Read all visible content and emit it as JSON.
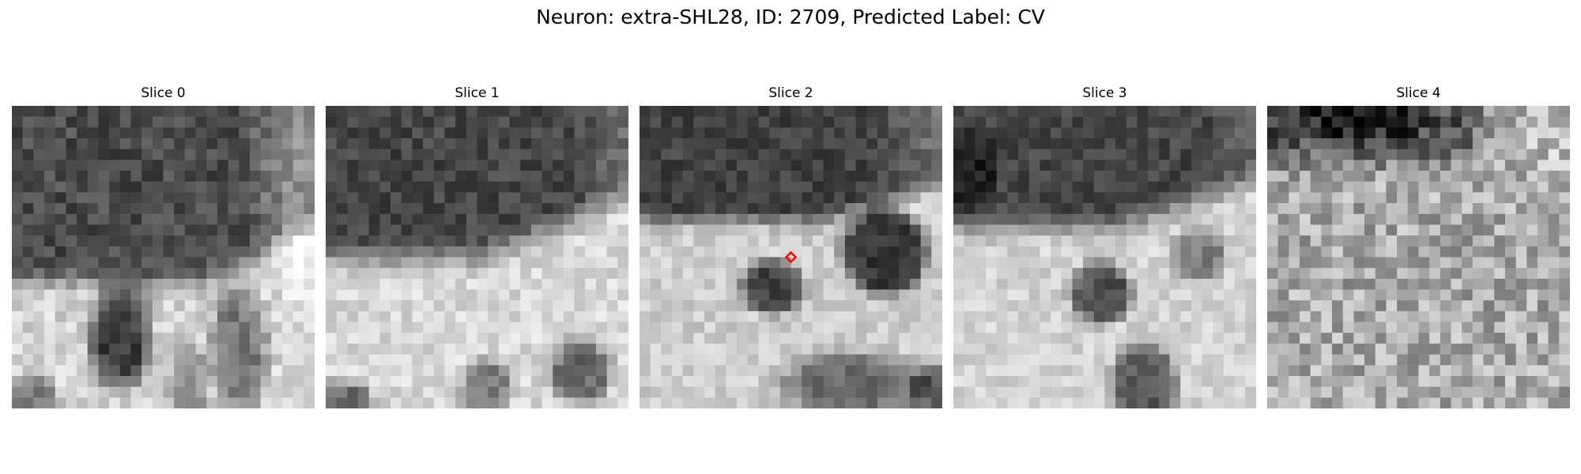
{
  "figure": {
    "title": "Neuron: extra-SHL28, ID: 2709, Predicted Label: CV"
  },
  "panels": [
    {
      "title": "Slice 0",
      "marker": false
    },
    {
      "title": "Slice 1",
      "marker": false
    },
    {
      "title": "Slice 2",
      "marker": true
    },
    {
      "title": "Slice 3",
      "marker": false
    },
    {
      "title": "Slice 4",
      "marker": false
    }
  ],
  "colors": {
    "marker": "#ff0000",
    "background": "#ffffff"
  }
}
